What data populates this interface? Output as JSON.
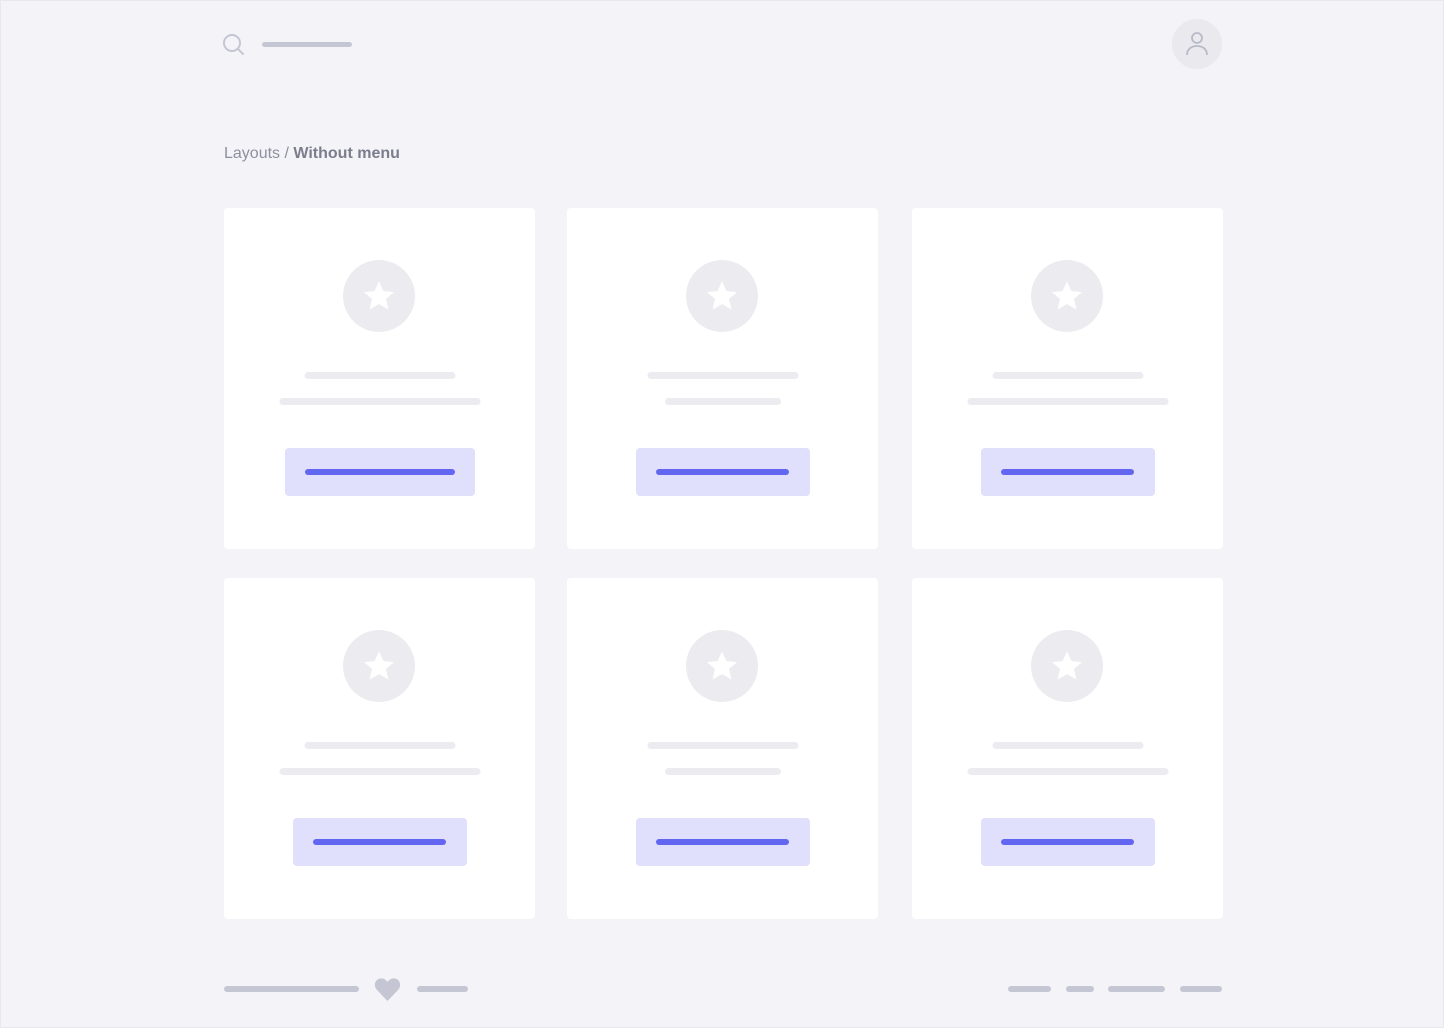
{
  "header": {
    "search_icon": "search-icon",
    "avatar_icon": "user-icon"
  },
  "breadcrumb": {
    "parent": "Layouts",
    "separator": " / ",
    "current": "Without menu"
  },
  "colors": {
    "background": "#f4f4f8",
    "card": "#ffffff",
    "placeholder": "#ececf0",
    "button_bg": "#e0e0fc",
    "button_line": "#6366f1",
    "muted": "#c5c6d3"
  },
  "cards": [
    {
      "icon": "star-icon"
    },
    {
      "icon": "star-icon"
    },
    {
      "icon": "star-icon"
    },
    {
      "icon": "star-icon"
    },
    {
      "icon": "star-icon"
    },
    {
      "icon": "star-icon"
    }
  ],
  "footer": {
    "icon": "heart-icon"
  }
}
